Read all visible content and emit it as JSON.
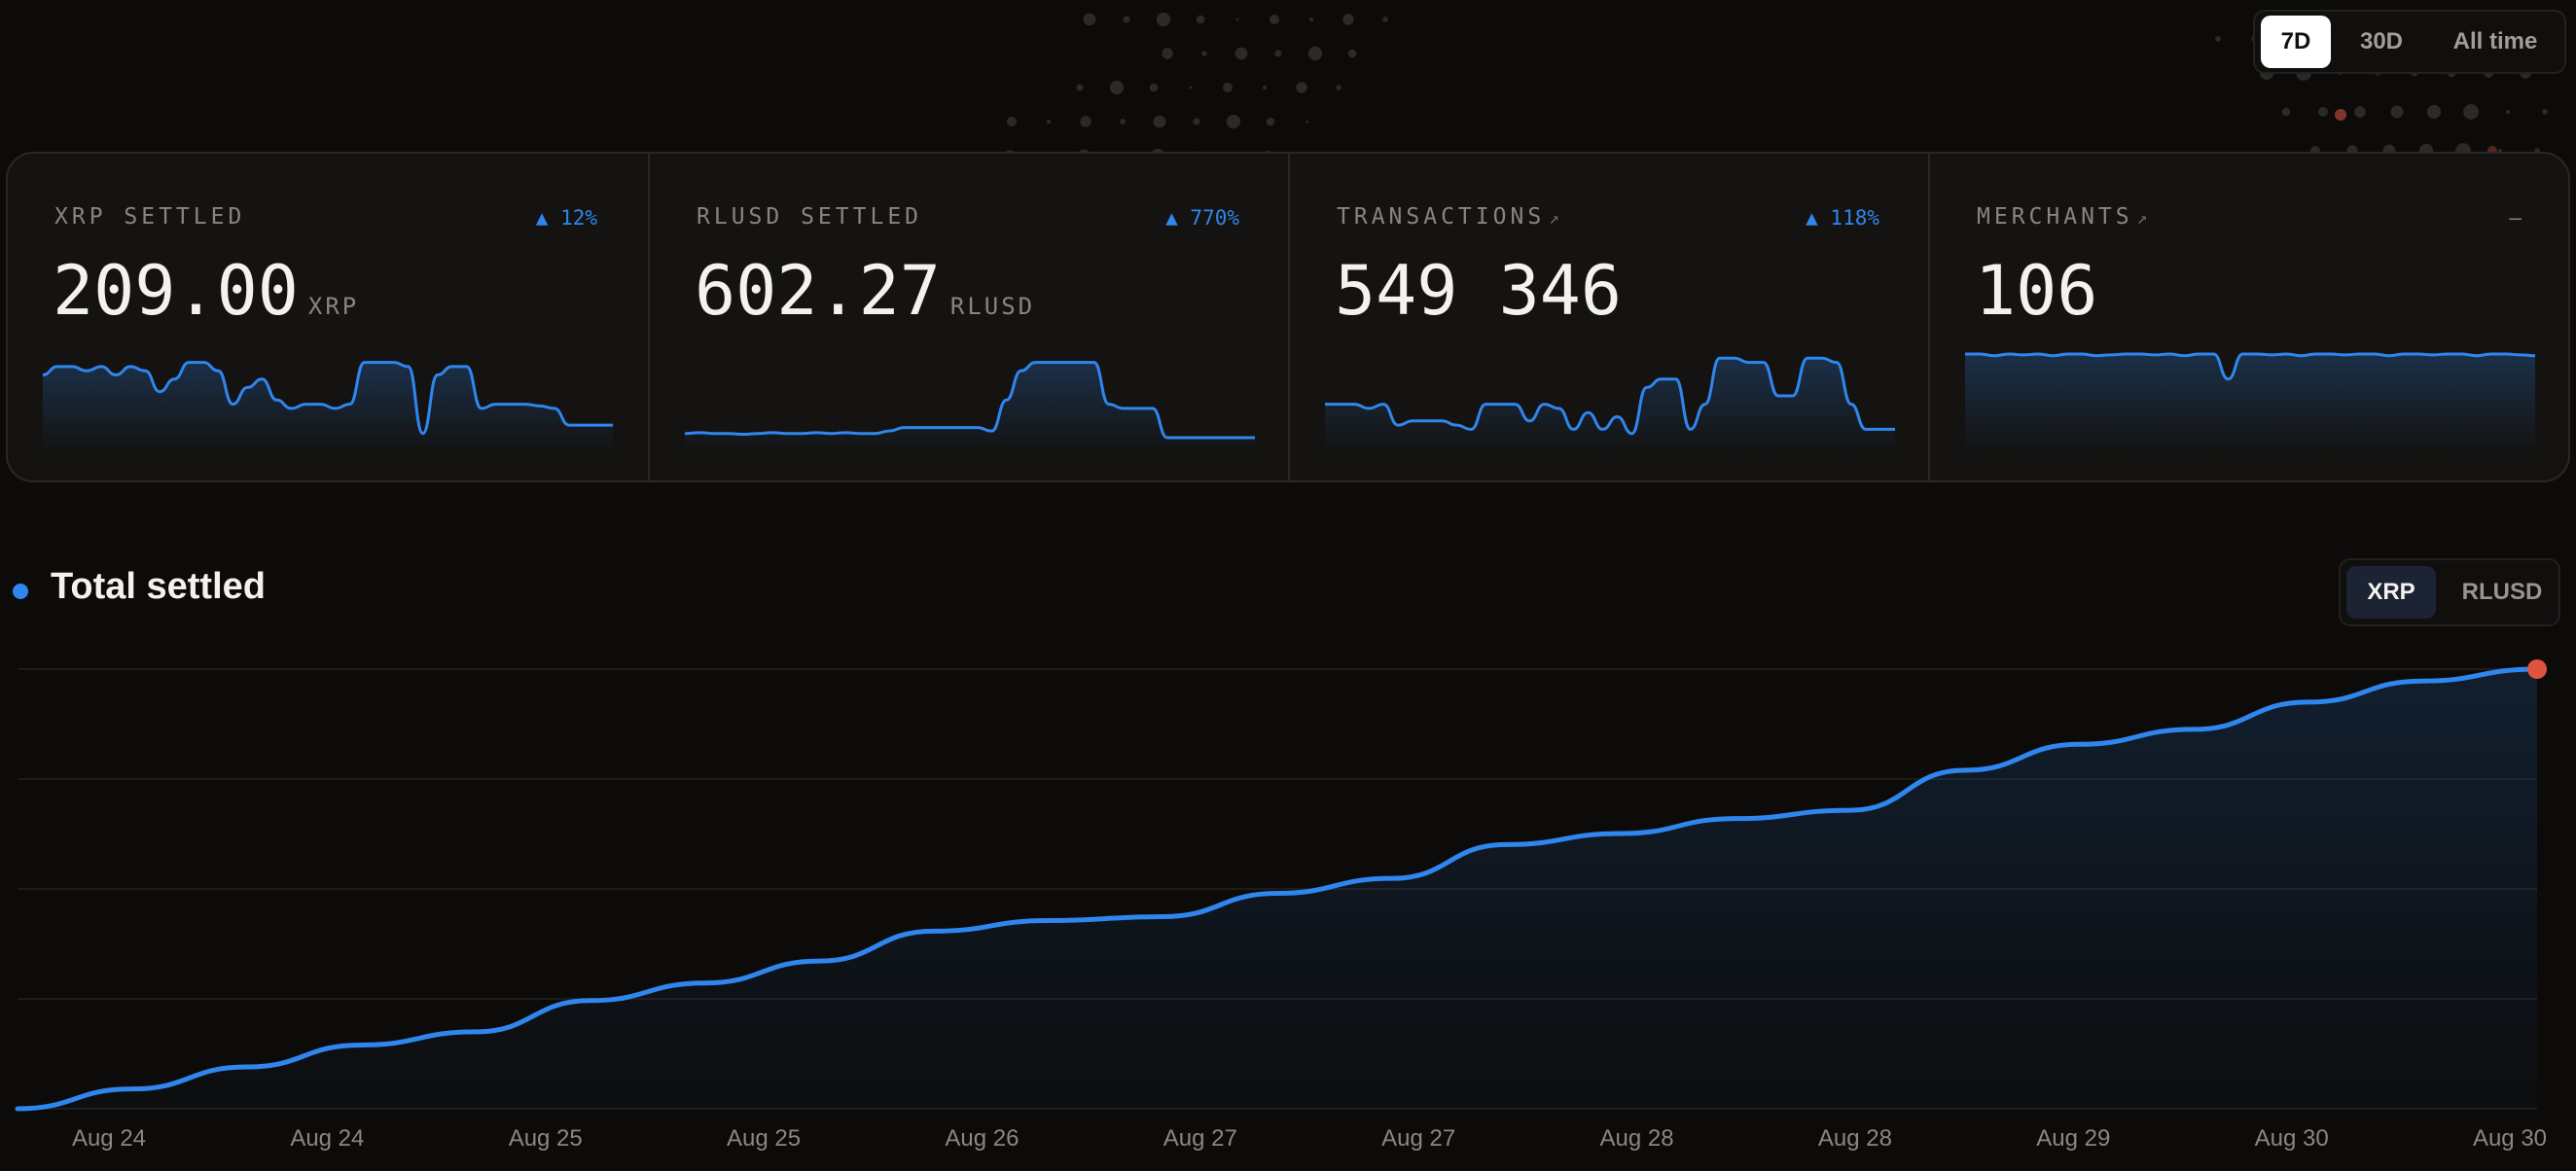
{
  "range_toggle": {
    "options": [
      "7D",
      "30D",
      "All time"
    ],
    "selected": "7D"
  },
  "cards": [
    {
      "label": "XRP SETTLED",
      "link_arrow": "",
      "delta": "▲ 12%",
      "value": "209.00",
      "unit": "XRP"
    },
    {
      "label": "RLUSD SETTLED",
      "link_arrow": "",
      "delta": "▲ 770%",
      "value": "602.27",
      "unit": "RLUSD"
    },
    {
      "label": "TRANSACTIONS",
      "link_arrow": "↗",
      "delta": "▲ 118%",
      "value": "549 346",
      "unit": ""
    },
    {
      "label": "MERCHANTS",
      "link_arrow": "↗",
      "delta": "—",
      "value": "106",
      "unit": ""
    }
  ],
  "total_settled": {
    "title": "Total settled",
    "currency_options": [
      "XRP",
      "RLUSD"
    ],
    "selected_currency": "XRP"
  },
  "colors": {
    "accent": "#2f86ee",
    "endpoint": "#e0533d",
    "background": "#0c0b0a"
  },
  "chart_data": {
    "type": "area",
    "title": "Total settled",
    "x_tick_labels": [
      "Aug 24",
      "Aug 24",
      "Aug 25",
      "Aug 25",
      "Aug 26",
      "Aug 27",
      "Aug 27",
      "Aug 28",
      "Aug 28",
      "Aug 29",
      "Aug 30",
      "Aug 30"
    ],
    "series": [
      {
        "values": [
          0,
          4.5,
          9.5,
          14.5,
          17.5,
          24.6,
          28.6,
          33.6,
          40.4,
          42.8,
          43.7,
          49.0,
          52.4,
          60.1,
          62.6,
          66.0,
          67.9,
          77.0,
          82.9,
          86.3,
          92.5,
          97.3,
          100
        ]
      }
    ],
    "ylim": [
      0,
      100
    ],
    "grid": true,
    "endpoint_marker": true,
    "sparklines": {
      "xrp_settled": [
        0.25,
        0.15,
        0.15,
        0.2,
        0.15,
        0.25,
        0.15,
        0.2,
        0.45,
        0.3,
        0.1,
        0.1,
        0.2,
        0.6,
        0.4,
        0.3,
        0.55,
        0.65,
        0.6,
        0.6,
        0.65,
        0.6,
        0.1,
        0.1,
        0.1,
        0.15,
        0.95,
        0.25,
        0.15,
        0.15,
        0.65,
        0.6,
        0.6,
        0.6,
        0.62,
        0.65,
        0.85,
        0.85,
        0.85,
        0.85
      ],
      "rlusd_settled": [
        0.95,
        0.94,
        0.95,
        0.95,
        0.96,
        0.95,
        0.94,
        0.95,
        0.95,
        0.94,
        0.95,
        0.94,
        0.95,
        0.95,
        0.92,
        0.88,
        0.88,
        0.88,
        0.88,
        0.88,
        0.88,
        0.92,
        0.55,
        0.2,
        0.1,
        0.1,
        0.1,
        0.1,
        0.1,
        0.6,
        0.65,
        0.65,
        0.65,
        1.0,
        1.0,
        1.0,
        1.0,
        1.0,
        1.0,
        1.0
      ],
      "transactions": [
        0.6,
        0.6,
        0.6,
        0.65,
        0.6,
        0.85,
        0.8,
        0.8,
        0.8,
        0.85,
        0.9,
        0.6,
        0.6,
        0.6,
        0.8,
        0.6,
        0.65,
        0.9,
        0.7,
        0.9,
        0.75,
        0.95,
        0.4,
        0.3,
        0.3,
        0.9,
        0.6,
        0.05,
        0.05,
        0.1,
        0.1,
        0.5,
        0.5,
        0.05,
        0.05,
        0.1,
        0.6,
        0.9,
        0.9,
        0.9
      ],
      "merchants": [
        0.0,
        0.0,
        0.02,
        0.0,
        0.01,
        0.0,
        0.02,
        0.0,
        0.0,
        0.02,
        0.01,
        0.0,
        0.0,
        0.01,
        0.0,
        0.02,
        0.0,
        0.0,
        0.3,
        0.0,
        0.0,
        0.01,
        0.0,
        0.02,
        0.0,
        0.0,
        0.01,
        0.0,
        0.0,
        0.02,
        0.0,
        0.0,
        0.01,
        0.0,
        0.0,
        0.02,
        0.0,
        0.0,
        0.01,
        0.02
      ]
    }
  }
}
